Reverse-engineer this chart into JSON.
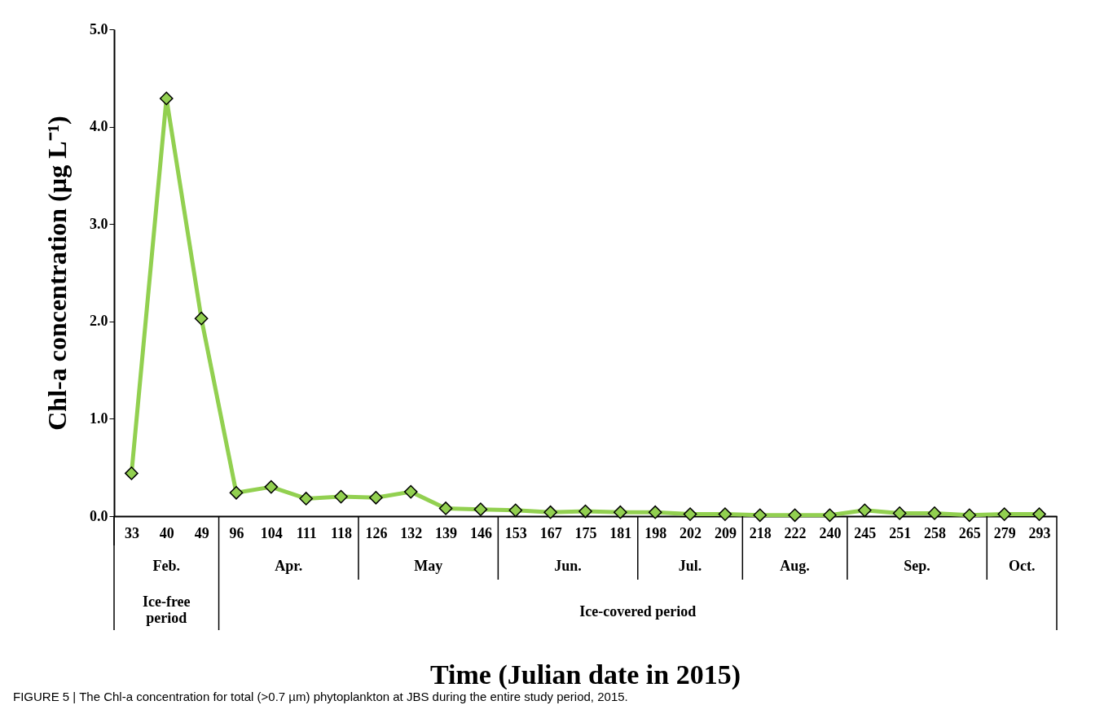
{
  "chart_data": {
    "type": "line",
    "xlabel": "Time (Julian date in 2015)",
    "ylabel": "Chl-a concentration (µg L⁻¹)",
    "categories": [
      "33",
      "40",
      "49",
      "96",
      "104",
      "111",
      "118",
      "126",
      "132",
      "139",
      "146",
      "153",
      "167",
      "175",
      "181",
      "198",
      "202",
      "209",
      "218",
      "222",
      "240",
      "245",
      "251",
      "258",
      "265",
      "279",
      "293"
    ],
    "series": [
      {
        "color": "#92d050",
        "values": [
          0.44,
          4.29,
          2.03,
          0.24,
          0.3,
          0.18,
          0.2,
          0.19,
          0.25,
          0.08,
          0.07,
          0.06,
          0.04,
          0.05,
          0.04,
          0.04,
          0.02,
          0.02,
          0.01,
          0.01,
          0.01,
          0.06,
          0.03,
          0.03,
          0.01,
          0.02,
          0.02
        ]
      }
    ],
    "ylim": [
      0,
      5
    ],
    "yticks": [
      {
        "value": 0,
        "label": "0.0"
      },
      {
        "value": 1,
        "label": "1.0"
      },
      {
        "value": 2,
        "label": "2.0"
      },
      {
        "value": 3,
        "label": "3.0"
      },
      {
        "value": 4,
        "label": "4.0"
      },
      {
        "value": 5,
        "label": "5.0"
      }
    ],
    "marker": "diamond",
    "line_style": "solid",
    "annotations": [
      "Feb.",
      "Apr.",
      "May",
      "Jun.",
      "Jul.",
      "Aug.",
      "Sep.",
      "Oct.",
      "Ice-free period",
      "Ice-covered period",
      "FIGURE 5 | The Chl-a concentration for total (>0.7 µm) phytoplankton at JBS during the entire study period, 2015."
    ]
  }
}
